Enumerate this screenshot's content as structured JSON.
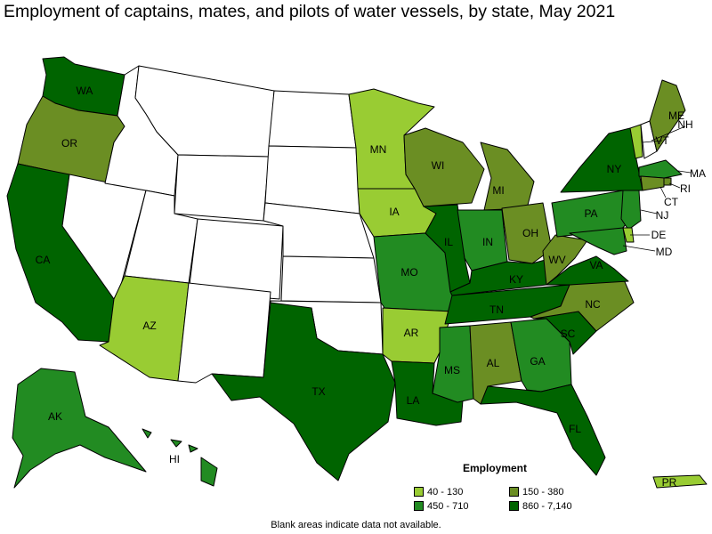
{
  "title": "Employment of captains, mates, and pilots of water vessels, by state, May 2021",
  "legend": {
    "title": "Employment",
    "items": [
      {
        "label": "40 - 130",
        "color": "#99cc33"
      },
      {
        "label": "150 - 380",
        "color": "#6b8e23"
      },
      {
        "label": "450 - 710",
        "color": "#228b22"
      },
      {
        "label": "860 - 7,140",
        "color": "#006400"
      }
    ]
  },
  "footnote": "Blank areas indicate data not available.",
  "states": [
    {
      "code": "WA",
      "label": "WA",
      "bin": 3
    },
    {
      "code": "OR",
      "label": "OR",
      "bin": 1
    },
    {
      "code": "CA",
      "label": "CA",
      "bin": 3
    },
    {
      "code": "NV",
      "label": "",
      "bin": null
    },
    {
      "code": "ID",
      "label": "",
      "bin": null
    },
    {
      "code": "MT",
      "label": "",
      "bin": null
    },
    {
      "code": "WY",
      "label": "",
      "bin": null
    },
    {
      "code": "UT",
      "label": "",
      "bin": null
    },
    {
      "code": "AZ",
      "label": "AZ",
      "bin": 0
    },
    {
      "code": "CO",
      "label": "",
      "bin": null
    },
    {
      "code": "NM",
      "label": "",
      "bin": null
    },
    {
      "code": "ND",
      "label": "",
      "bin": null
    },
    {
      "code": "SD",
      "label": "",
      "bin": null
    },
    {
      "code": "NE",
      "label": "",
      "bin": null
    },
    {
      "code": "KS",
      "label": "",
      "bin": null
    },
    {
      "code": "OK",
      "label": "",
      "bin": null
    },
    {
      "code": "TX",
      "label": "TX",
      "bin": 3
    },
    {
      "code": "MN",
      "label": "MN",
      "bin": 0
    },
    {
      "code": "IA",
      "label": "IA",
      "bin": 0
    },
    {
      "code": "MO",
      "label": "MO",
      "bin": 2
    },
    {
      "code": "AR",
      "label": "AR",
      "bin": 0
    },
    {
      "code": "LA",
      "label": "LA",
      "bin": 3
    },
    {
      "code": "WI",
      "label": "WI",
      "bin": 1
    },
    {
      "code": "IL",
      "label": "IL",
      "bin": 3
    },
    {
      "code": "MI",
      "label": "MI",
      "bin": 1
    },
    {
      "code": "IN",
      "label": "IN",
      "bin": 2
    },
    {
      "code": "OH",
      "label": "OH",
      "bin": 1
    },
    {
      "code": "KY",
      "label": "KY",
      "bin": 3
    },
    {
      "code": "TN",
      "label": "TN",
      "bin": 3
    },
    {
      "code": "MS",
      "label": "MS",
      "bin": 2
    },
    {
      "code": "AL",
      "label": "AL",
      "bin": 1
    },
    {
      "code": "GA",
      "label": "GA",
      "bin": 2
    },
    {
      "code": "FL",
      "label": "FL",
      "bin": 3
    },
    {
      "code": "SC",
      "label": "SC",
      "bin": 3
    },
    {
      "code": "NC",
      "label": "NC",
      "bin": 1
    },
    {
      "code": "VA",
      "label": "VA",
      "bin": 3
    },
    {
      "code": "WV",
      "label": "WV",
      "bin": 1
    },
    {
      "code": "PA",
      "label": "PA",
      "bin": 2
    },
    {
      "code": "NY",
      "label": "NY",
      "bin": 3
    },
    {
      "code": "VT",
      "label": "VT",
      "bin": 0
    },
    {
      "code": "NH",
      "label": "NH",
      "bin": null
    },
    {
      "code": "ME",
      "label": "ME",
      "bin": 1
    },
    {
      "code": "MA",
      "label": "MA",
      "bin": 2
    },
    {
      "code": "RI",
      "label": "RI",
      "bin": 1
    },
    {
      "code": "CT",
      "label": "CT",
      "bin": 1
    },
    {
      "code": "NJ",
      "label": "NJ",
      "bin": 2
    },
    {
      "code": "DE",
      "label": "DE",
      "bin": 0
    },
    {
      "code": "MD",
      "label": "MD",
      "bin": 2
    },
    {
      "code": "AK",
      "label": "AK",
      "bin": 2
    },
    {
      "code": "HI",
      "label": "HI",
      "bin": 2
    },
    {
      "code": "PR",
      "label": "PR",
      "bin": 0
    }
  ]
}
